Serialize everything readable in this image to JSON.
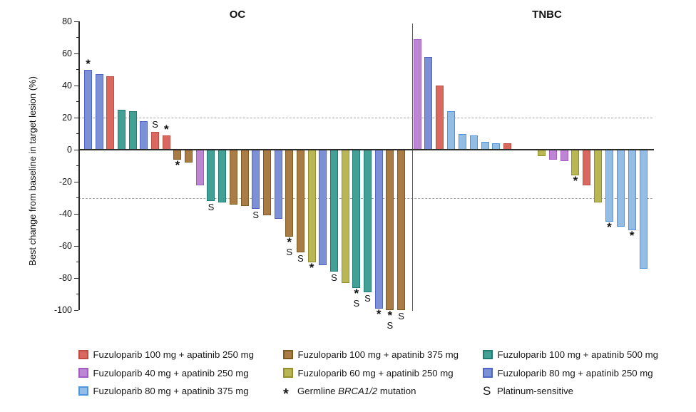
{
  "y_axis": {
    "label": "Best change from baseline in target lesion (%)",
    "major_ticks": [
      80,
      60,
      40,
      20,
      0,
      -20,
      -40,
      -60,
      -80,
      -100
    ],
    "minor_ticks": [
      70,
      50,
      30,
      10,
      -10,
      -30,
      -50,
      -70,
      -90
    ]
  },
  "reference_lines": {
    "upper": 20,
    "lower": -30
  },
  "groups": [
    {
      "id": "red",
      "label": "Fuzuloparib 100 mg + apatinib 250 mg",
      "fill": "#D9695F",
      "stroke": "#C04B41"
    },
    {
      "id": "purple",
      "label": "Fuzuloparib 40 mg + apatinib 250 mg",
      "fill": "#BC86D3",
      "stroke": "#A55BC6"
    },
    {
      "id": "sky",
      "label": "Fuzuloparib 80 mg + apatinib 375 mg",
      "fill": "#92BDE6",
      "stroke": "#4E95DB"
    },
    {
      "id": "brown",
      "label": "Fuzuloparib 100 mg + apatinib 375 mg",
      "fill": "#A87C44",
      "stroke": "#7D5B1E"
    },
    {
      "id": "yellow",
      "label": "Fuzuloparib 60 mg + apatinib 250 mg",
      "fill": "#B9B655",
      "stroke": "#92912B"
    },
    {
      "id": "teal",
      "label": "Fuzuloparib 100 mg + apatinib 500 mg",
      "fill": "#43A096",
      "stroke": "#1F7C70"
    },
    {
      "id": "slate",
      "label": "Fuzuloparib 80 mg + apatinib 250 mg",
      "fill": "#7C90D5",
      "stroke": "#5065C7"
    }
  ],
  "legend": {
    "columns": [
      [
        "red",
        "purple",
        "sky"
      ],
      [
        "brown",
        "yellow",
        "*"
      ],
      [
        "teal",
        "slate",
        "S"
      ]
    ],
    "star_symbol": "*",
    "star_label_pre": "Germline ",
    "star_label_italic": "BRCA1/2",
    "star_label_post": " mutation",
    "s_symbol": "S",
    "s_label": "Platinum-sensitive"
  },
  "chart_data": {
    "type": "bar",
    "title": "",
    "ylabel": "Best change from baseline in target lesion (%)",
    "ylim": [
      -100,
      80
    ],
    "marker_meanings": {
      "*": "Germline BRCA1/2 mutation",
      "S": "Platinum-sensitive"
    },
    "panels": [
      {
        "title": "OC",
        "bars": [
          {
            "group": "slate",
            "value": 50,
            "markers": [
              "*"
            ]
          },
          {
            "group": "slate",
            "value": 47,
            "markers": []
          },
          {
            "group": "red",
            "value": 46,
            "markers": []
          },
          {
            "group": "teal",
            "value": 25,
            "markers": []
          },
          {
            "group": "teal",
            "value": 24,
            "markers": []
          },
          {
            "group": "slate",
            "value": 18,
            "markers": []
          },
          {
            "group": "red",
            "value": 11,
            "markers": [
              "S"
            ]
          },
          {
            "group": "red",
            "value": 9,
            "markers": [
              "*"
            ]
          },
          {
            "group": "brown",
            "value": -6,
            "markers": [
              "*"
            ]
          },
          {
            "group": "brown",
            "value": -8,
            "markers": []
          },
          {
            "group": "purple",
            "value": -22,
            "markers": []
          },
          {
            "group": "teal",
            "value": -32,
            "markers": [
              "S"
            ]
          },
          {
            "group": "teal",
            "value": -33,
            "markers": []
          },
          {
            "group": "brown",
            "value": -34,
            "markers": []
          },
          {
            "group": "brown",
            "value": -35,
            "markers": []
          },
          {
            "group": "slate",
            "value": -37,
            "markers": [
              "S"
            ]
          },
          {
            "group": "brown",
            "value": -41,
            "markers": []
          },
          {
            "group": "slate",
            "value": -43,
            "markers": []
          },
          {
            "group": "brown",
            "value": -54,
            "markers": [
              "*",
              "S"
            ]
          },
          {
            "group": "brown",
            "value": -64,
            "markers": [
              "S"
            ]
          },
          {
            "group": "yellow",
            "value": -70,
            "markers": [
              "*"
            ]
          },
          {
            "group": "slate",
            "value": -72,
            "markers": []
          },
          {
            "group": "teal",
            "value": -76,
            "markers": [
              "S"
            ]
          },
          {
            "group": "yellow",
            "value": -83,
            "markers": []
          },
          {
            "group": "teal",
            "value": -86,
            "markers": [
              "*",
              "S"
            ]
          },
          {
            "group": "teal",
            "value": -89,
            "markers": [
              "S"
            ]
          },
          {
            "group": "slate",
            "value": -99,
            "markers": [
              "*"
            ]
          },
          {
            "group": "brown",
            "value": -100,
            "markers": [
              "*",
              "S"
            ]
          },
          {
            "group": "brown",
            "value": -100,
            "markers": [
              "S"
            ]
          }
        ]
      },
      {
        "title": "TNBC",
        "bars": [
          {
            "group": "purple",
            "value": 69,
            "markers": []
          },
          {
            "group": "slate",
            "value": 58,
            "markers": []
          },
          {
            "group": "red",
            "value": 40,
            "markers": []
          },
          {
            "group": "sky",
            "value": 24,
            "markers": []
          },
          {
            "group": "sky",
            "value": 10,
            "markers": []
          },
          {
            "group": "sky",
            "value": 9,
            "markers": []
          },
          {
            "group": "sky",
            "value": 5,
            "markers": []
          },
          {
            "group": "sky",
            "value": 4,
            "markers": []
          },
          {
            "group": "red",
            "value": 4,
            "markers": []
          },
          {
            "group": null,
            "value": 0,
            "markers": []
          },
          {
            "group": null,
            "value": 0,
            "markers": []
          },
          {
            "group": "yellow",
            "value": -4,
            "markers": []
          },
          {
            "group": "purple",
            "value": -6,
            "markers": []
          },
          {
            "group": "purple",
            "value": -7,
            "markers": []
          },
          {
            "group": "yellow",
            "value": -16,
            "markers": [
              "*"
            ]
          },
          {
            "group": "red",
            "value": -22,
            "markers": []
          },
          {
            "group": "yellow",
            "value": -33,
            "markers": []
          },
          {
            "group": "sky",
            "value": -45,
            "markers": [
              "*"
            ]
          },
          {
            "group": "sky",
            "value": -48,
            "markers": []
          },
          {
            "group": "sky",
            "value": -50,
            "markers": [
              "*"
            ]
          },
          {
            "group": "sky",
            "value": -74,
            "markers": []
          }
        ]
      }
    ]
  }
}
